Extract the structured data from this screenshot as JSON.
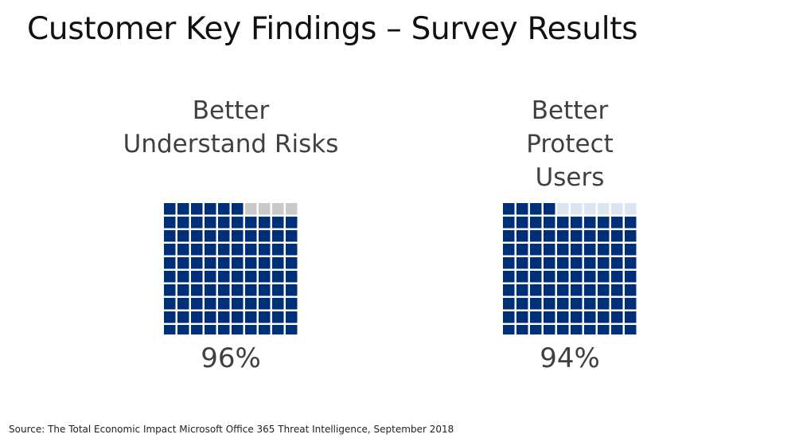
{
  "title": "Customer Key Findings – Survey Results",
  "source": "Source: The Total Economic Impact Microsoft Office 365 Threat Intelligence, September 2018",
  "colors": {
    "filled": "#002F7A",
    "empty_left": "#C9C9C9",
    "empty_right": "#DCE6F0"
  },
  "chart_data": [
    {
      "type": "waffle",
      "title": "Better Understand Risks",
      "value": 96,
      "value_label": "96%",
      "grid": [
        10,
        10
      ]
    },
    {
      "type": "waffle",
      "title": "Better Protect Users",
      "value": 94,
      "value_label": "94%",
      "grid": [
        10,
        10
      ]
    }
  ],
  "panels": [
    {
      "label_lines": [
        "Better",
        "Understand Risks"
      ],
      "pct": "96%"
    },
    {
      "label_lines": [
        "Better",
        "Protect",
        "Users"
      ],
      "pct": "94%"
    }
  ]
}
